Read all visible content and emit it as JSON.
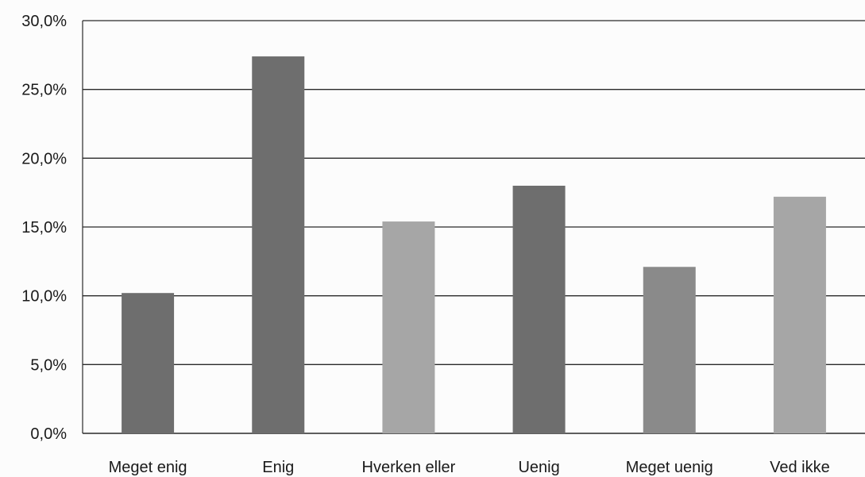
{
  "chart_data": {
    "type": "bar",
    "categories": [
      "Meget enig",
      "Enig",
      "Hverken eller",
      "Uenig",
      "Meget uenig",
      "Ved ikke"
    ],
    "values": [
      10.2,
      27.4,
      15.4,
      18.0,
      12.1,
      17.2
    ],
    "value_format": "percent, one decimal, comma separator",
    "y_ticks": [
      "0,0%",
      "5,0%",
      "10,0%",
      "15,0%",
      "20,0%",
      "25,0%",
      "30,0%"
    ],
    "ylim": [
      0,
      30
    ],
    "grid": true,
    "title": "",
    "xlabel": "",
    "ylabel": "",
    "colors": {
      "bars": [
        "#6e6e6e",
        "#6e6e6e",
        "#a6a6a6",
        "#6e6e6e",
        "#8a8a8a",
        "#a6a6a6"
      ],
      "gridline": "#2a2a2a",
      "text": "#1a1a1a"
    }
  }
}
